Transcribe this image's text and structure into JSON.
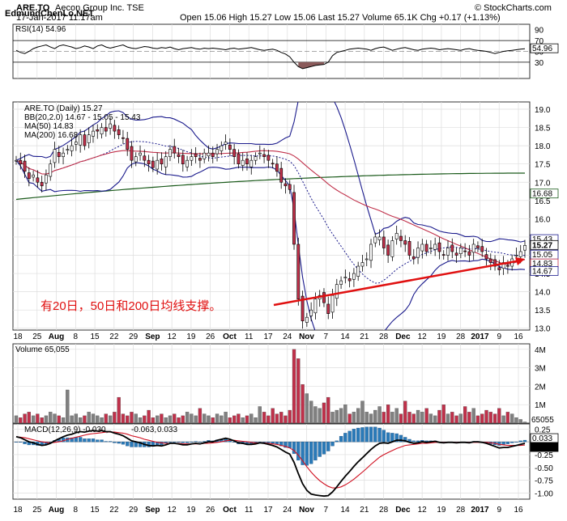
{
  "watermark": "EdmundChenLo.NET",
  "header": {
    "symbol": "ARE.TO",
    "company": "Aecon Group Inc. TSE",
    "date": "17-Jan-2017 11:17am",
    "ohlc": "Open 15.06  High 15.27  Low 15.06  Last 15.27  Volume 65.1K  Chg +0.17 (+1.13%)",
    "credit": "© StockCharts.com"
  },
  "annotation": {
    "text": "有20日，50日和200日均线支撑。"
  },
  "rsi": {
    "label": "RSI(14) 54.96"
  },
  "price": {
    "legend_title": "ARE.TO (Daily) 15.27",
    "legend_bb": "BB(20,2.0) 14.67 - 15.05 - 15.43",
    "legend_ma50": "MA(50) 14.83",
    "legend_ma200": "MA(200) 16.68"
  },
  "volume": {
    "label": "Volume 65,055"
  },
  "macd": {
    "legend_main": "MACD(12,26,9) -0.030,",
    "legend_signal": "-0.063,",
    "legend_hist": "0.033"
  },
  "colors": {
    "up": "#ffffff",
    "down": "#c0304a",
    "bb": "#1a1a8c",
    "ma50": "#c0304a",
    "ma200": "#1a5a1a",
    "macd": "#000000",
    "signal": "#d01020",
    "hist": "#2a7ab8",
    "vol_up": "#808080",
    "vol_down": "#c0304a"
  },
  "chart_data": [
    {
      "type": "candlestick",
      "title": "ARE.TO (Daily) 15.27",
      "x_labels": [
        "18",
        "25",
        "Aug",
        "8",
        "15",
        "22",
        "29",
        "Sep",
        "12",
        "19",
        "26",
        "Oct",
        "11",
        "17",
        "24",
        "Nov",
        "7",
        "14",
        "21",
        "28",
        "Dec",
        "12",
        "19",
        "28",
        "2017",
        "9",
        "16"
      ],
      "y_ticks": [
        13.0,
        13.5,
        14.0,
        14.5,
        15.0,
        15.5,
        16.0,
        16.5,
        17.0,
        17.5,
        18.0,
        18.5,
        19.0
      ],
      "ylim": [
        12.95,
        19.2
      ],
      "y_value_labels": [
        {
          "text": "16.68",
          "value": 16.68
        },
        {
          "text": "15.43",
          "value": 15.43
        },
        {
          "text": "15.27",
          "value": 15.27
        },
        {
          "text": "15.05",
          "value": 15.05
        },
        {
          "text": "14.83",
          "value": 14.83
        },
        {
          "text": "14.67",
          "value": 14.67
        }
      ],
      "close": [
        17.6,
        17.5,
        17.3,
        17.1,
        17.2,
        17.0,
        16.9,
        17.2,
        17.5,
        17.9,
        17.7,
        17.8,
        17.9,
        18.0,
        18.1,
        18.3,
        18.0,
        18.3,
        18.4,
        18.4,
        18.5,
        18.4,
        18.6,
        18.4,
        18.3,
        18.2,
        17.9,
        17.6,
        17.7,
        17.8,
        17.6,
        17.5,
        17.4,
        17.6,
        17.5,
        17.7,
        17.9,
        17.8,
        17.7,
        17.5,
        17.6,
        17.7,
        17.7,
        17.6,
        17.8,
        17.8,
        17.7,
        17.9,
        18.0,
        18.1,
        17.9,
        17.7,
        17.5,
        17.6,
        17.5,
        17.6,
        17.7,
        17.8,
        17.7,
        17.6,
        17.5,
        17.3,
        17.0,
        16.9,
        16.8,
        15.3,
        13.8,
        13.2,
        13.3,
        13.5,
        13.8,
        13.9,
        13.7,
        13.4,
        13.9,
        14.2,
        14.3,
        14.4,
        14.3,
        14.5,
        14.7,
        14.8,
        14.9,
        15.3,
        15.5,
        15.5,
        15.2,
        15.0,
        15.4,
        15.6,
        15.4,
        15.3,
        15.0,
        14.9,
        15.2,
        15.3,
        15.1,
        15.2,
        15.3,
        15.1,
        15.0,
        15.2,
        15.1,
        15.0,
        15.2,
        15.1,
        15.0,
        15.3,
        15.2,
        15.1,
        14.9,
        14.8,
        14.7,
        14.6,
        14.8,
        14.7,
        14.9,
        15.0,
        15.1,
        15.27
      ],
      "rsi": {
        "ylim": [
          0,
          100
        ],
        "ticks": [
          30,
          50,
          70,
          90
        ],
        "value_label": "54.96",
        "values": [
          52,
          48,
          46,
          50,
          55,
          58,
          60,
          62,
          58,
          55,
          60,
          62,
          60,
          58,
          55,
          57,
          60,
          58,
          55,
          60,
          62,
          58,
          56,
          58,
          60,
          62,
          58,
          56,
          55,
          57,
          59,
          58,
          56,
          55,
          57,
          56,
          58,
          55,
          53,
          55,
          56,
          57,
          55,
          54,
          56,
          55,
          56,
          55,
          54,
          53,
          55,
          56,
          54,
          55,
          56,
          57,
          55,
          53,
          52,
          53,
          54,
          52,
          48,
          45,
          40,
          30,
          22,
          18,
          20,
          22,
          24,
          25,
          26,
          30,
          42,
          48,
          50,
          52,
          54,
          55,
          56,
          55,
          54,
          52,
          55,
          57,
          58,
          55,
          52,
          54,
          56,
          57,
          55,
          53,
          52,
          54,
          55,
          56,
          55,
          53,
          54,
          55,
          54,
          53,
          52,
          54,
          55,
          53,
          52,
          51,
          50,
          48,
          46,
          48,
          50,
          51,
          52,
          53,
          54,
          54.96
        ]
      }
    },
    {
      "type": "bar",
      "title": "Volume 65,055",
      "y_ticks_labels": [
        "1M",
        "2M",
        "3M",
        "4M"
      ],
      "y_value_label": "65055",
      "ylim": [
        0,
        4.3
      ],
      "values_millions": [
        0.4,
        0.3,
        0.5,
        0.6,
        0.4,
        0.5,
        0.3,
        0.4,
        0.6,
        0.5,
        0.4,
        0.3,
        1.8,
        0.4,
        0.5,
        0.3,
        0.4,
        0.6,
        0.5,
        0.4,
        0.3,
        0.5,
        0.4,
        0.6,
        1.4,
        0.5,
        0.4,
        0.6,
        0.5,
        0.3,
        0.4,
        0.7,
        0.3,
        0.4,
        0.5,
        0.3,
        0.4,
        0.5,
        0.3,
        0.4,
        0.6,
        0.5,
        0.4,
        0.8,
        0.5,
        0.4,
        0.3,
        0.5,
        0.4,
        0.6,
        0.3,
        0.4,
        0.5,
        0.3,
        0.4,
        0.5,
        0.3,
        0.9,
        0.6,
        0.4,
        0.8,
        0.5,
        0.6,
        0.4,
        0.7,
        4.0,
        3.5,
        2.1,
        1.6,
        1.2,
        0.9,
        0.8,
        1.1,
        1.4,
        0.6,
        0.7,
        0.8,
        1.0,
        0.5,
        0.6,
        0.8,
        1.2,
        0.6,
        0.5,
        0.7,
        0.9,
        0.6,
        1.0,
        0.6,
        0.8,
        0.5,
        1.2,
        0.6,
        0.5,
        0.7,
        0.6,
        0.8,
        0.5,
        0.4,
        0.7,
        1.0,
        0.5,
        0.6,
        0.4,
        0.5,
        0.9,
        0.6,
        0.8,
        0.4,
        0.5,
        0.7,
        0.6,
        0.5,
        0.8,
        0.4,
        0.6,
        0.5,
        0.3,
        0.2,
        0.065
      ],
      "up": [
        true,
        false,
        false,
        false,
        true,
        false,
        false,
        true,
        true,
        true,
        false,
        true,
        true,
        true,
        true,
        true,
        false,
        true,
        true,
        true,
        true,
        false,
        true,
        false,
        false,
        false,
        false,
        false,
        true,
        true,
        false,
        false,
        false,
        true,
        false,
        true,
        true,
        false,
        false,
        false,
        true,
        true,
        true,
        false,
        true,
        true,
        false,
        true,
        true,
        true,
        false,
        false,
        false,
        true,
        false,
        true,
        true,
        true,
        false,
        false,
        false,
        false,
        false,
        false,
        false,
        false,
        false,
        false,
        true,
        true,
        true,
        true,
        false,
        false,
        true,
        true,
        true,
        true,
        false,
        true,
        true,
        true,
        true,
        true,
        true,
        true,
        false,
        false,
        true,
        true,
        false,
        false,
        false,
        false,
        true,
        true,
        false,
        true,
        true,
        false,
        false,
        true,
        false,
        false,
        true,
        false,
        false,
        true,
        false,
        false,
        false,
        false,
        false,
        false,
        true,
        false,
        true,
        true,
        true,
        true
      ]
    },
    {
      "type": "line",
      "title": "MACD(12,26,9) -0.030, -0.063, 0.033",
      "y_ticks": [
        -1.0,
        -0.75,
        -0.5,
        -0.25,
        0.0,
        0.25
      ],
      "ylim": [
        -1.12,
        0.35
      ],
      "y_value_labels": [
        {
          "text": "0.033",
          "value": 0.033
        },
        {
          "text": "-0.030",
          "value": -0.03
        }
      ],
      "series": [
        {
          "name": "MACD(12,26,9)",
          "values": [
            0.1,
            0.08,
            0.04,
            0.0,
            -0.02,
            -0.05,
            -0.07,
            -0.06,
            -0.03,
            0.02,
            0.06,
            0.1,
            0.13,
            0.15,
            0.18,
            0.2,
            0.19,
            0.21,
            0.22,
            0.21,
            0.22,
            0.2,
            0.2,
            0.17,
            0.15,
            0.12,
            0.07,
            0.02,
            0.0,
            -0.02,
            -0.05,
            -0.07,
            -0.08,
            -0.07,
            -0.08,
            -0.06,
            -0.03,
            -0.03,
            -0.04,
            -0.06,
            -0.06,
            -0.04,
            -0.03,
            -0.04,
            -0.02,
            0.0,
            0.0,
            0.03,
            0.05,
            0.07,
            0.05,
            0.02,
            -0.02,
            -0.03,
            -0.05,
            -0.05,
            -0.04,
            -0.02,
            -0.03,
            -0.05,
            -0.07,
            -0.1,
            -0.15,
            -0.2,
            -0.24,
            -0.4,
            -0.62,
            -0.82,
            -0.95,
            -1.02,
            -1.04,
            -1.05,
            -1.06,
            -1.05,
            -0.98,
            -0.88,
            -0.77,
            -0.67,
            -0.58,
            -0.48,
            -0.39,
            -0.31,
            -0.23,
            -0.15,
            -0.08,
            -0.03,
            -0.02,
            -0.03,
            0.0,
            0.03,
            0.03,
            0.02,
            -0.01,
            -0.03,
            -0.02,
            0.0,
            -0.01,
            0.0,
            0.01,
            -0.01,
            -0.02,
            -0.01,
            -0.01,
            -0.02,
            -0.01,
            -0.01,
            -0.02,
            0.0,
            0.0,
            -0.01,
            -0.03,
            -0.06,
            -0.09,
            -0.12,
            -0.11,
            -0.11,
            -0.09,
            -0.07,
            -0.05,
            -0.03
          ]
        },
        {
          "name": "Signal",
          "values": [
            0.1,
            0.09,
            0.08,
            0.06,
            0.04,
            0.02,
            0.0,
            -0.01,
            -0.02,
            -0.01,
            0.0,
            0.02,
            0.05,
            0.07,
            0.09,
            0.11,
            0.13,
            0.15,
            0.16,
            0.17,
            0.18,
            0.19,
            0.19,
            0.19,
            0.18,
            0.17,
            0.15,
            0.12,
            0.1,
            0.08,
            0.05,
            0.03,
            0.01,
            -0.01,
            -0.02,
            -0.03,
            -0.03,
            -0.03,
            -0.03,
            -0.04,
            -0.04,
            -0.04,
            -0.04,
            -0.04,
            -0.03,
            -0.03,
            -0.02,
            -0.01,
            0.0,
            0.02,
            0.03,
            0.03,
            0.02,
            0.01,
            0.0,
            -0.01,
            -0.02,
            -0.02,
            -0.02,
            -0.03,
            -0.04,
            -0.05,
            -0.07,
            -0.09,
            -0.12,
            -0.17,
            -0.26,
            -0.37,
            -0.49,
            -0.59,
            -0.68,
            -0.76,
            -0.82,
            -0.87,
            -0.9,
            -0.9,
            -0.88,
            -0.84,
            -0.79,
            -0.73,
            -0.66,
            -0.59,
            -0.52,
            -0.44,
            -0.37,
            -0.3,
            -0.25,
            -0.21,
            -0.17,
            -0.13,
            -0.1,
            -0.07,
            -0.06,
            -0.05,
            -0.04,
            -0.03,
            -0.03,
            -0.02,
            -0.01,
            -0.01,
            -0.01,
            -0.01,
            -0.01,
            -0.01,
            -0.01,
            -0.01,
            -0.01,
            -0.01,
            -0.01,
            -0.01,
            -0.01,
            -0.02,
            -0.03,
            -0.05,
            -0.06,
            -0.07,
            -0.07,
            -0.07,
            -0.07,
            -0.063
          ]
        }
      ]
    }
  ]
}
